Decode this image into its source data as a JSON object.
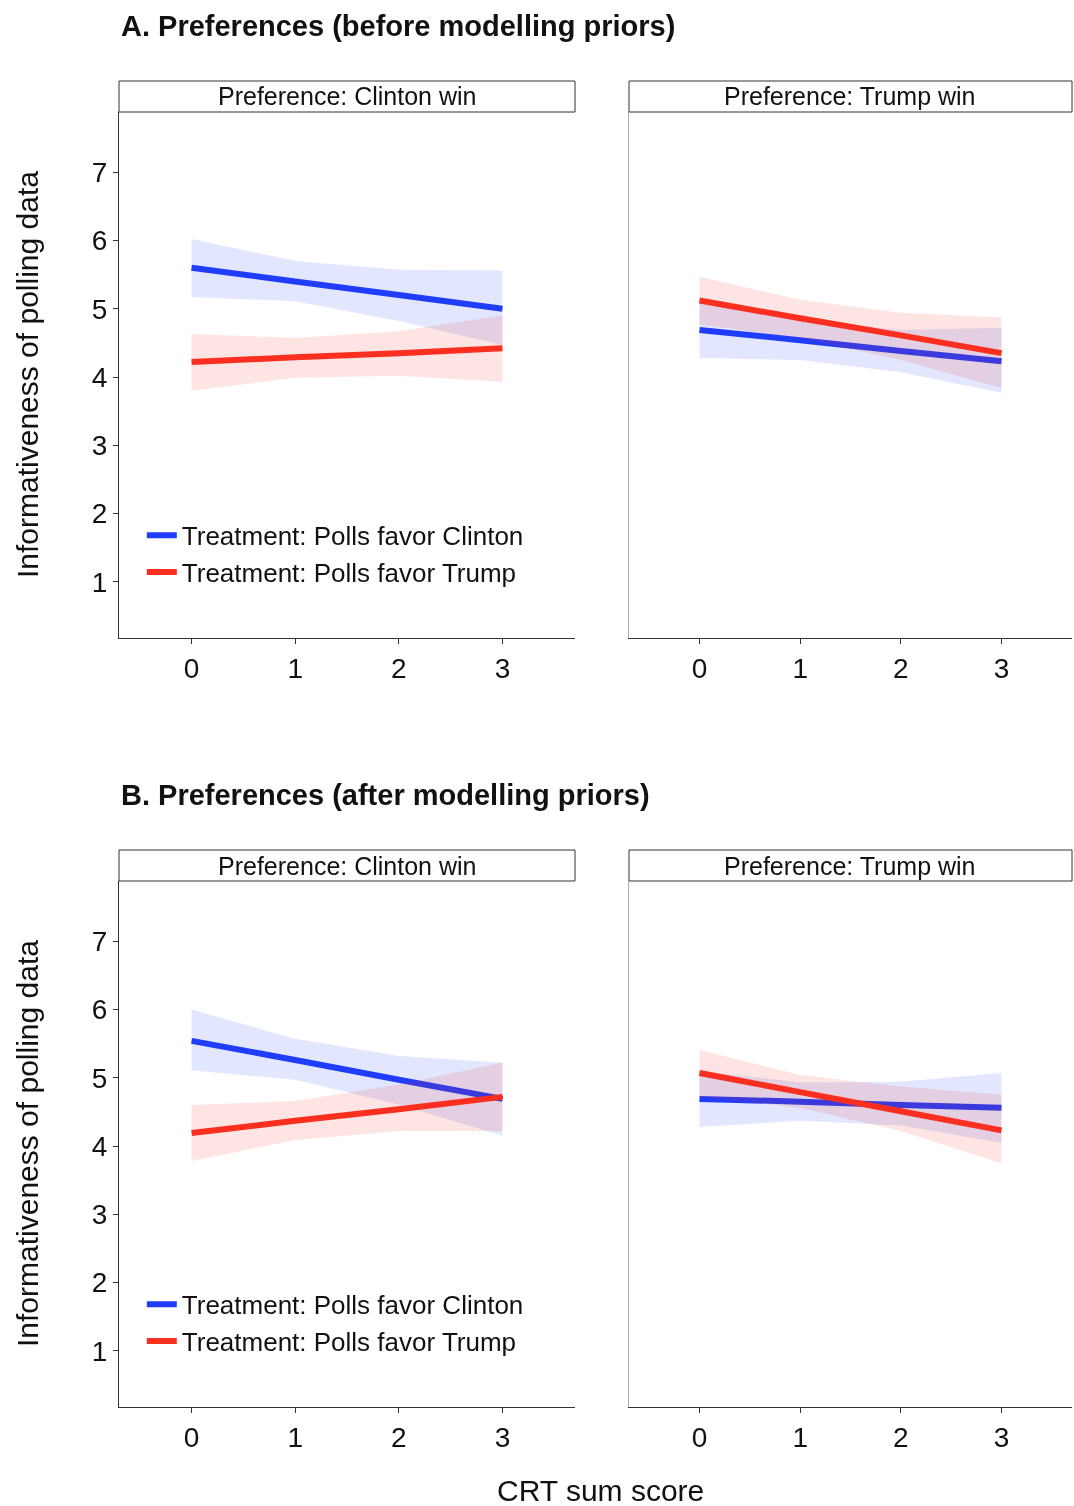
{
  "chart_data": [
    {
      "type": "line",
      "subtitle": "A. Preferences (before modelling priors)",
      "title": "Preference: Clinton win",
      "ylabel": "Informativeness of polling data",
      "x": [
        0,
        1,
        2,
        3
      ],
      "xlim": [
        -0.7,
        3.7
      ],
      "xticks": [
        0,
        1,
        2,
        3
      ],
      "ylim": [
        0.18,
        7.88
      ],
      "yticks": [
        1,
        2,
        3,
        4,
        5,
        6,
        7
      ],
      "legend": "bottom left",
      "series": [
        {
          "name": "Treatment: Polls favor Clinton",
          "color": "#1f3dfa",
          "values": [
            5.6,
            5.4,
            5.2,
            5.0
          ],
          "lower": [
            5.17,
            5.11,
            4.82,
            4.47
          ],
          "upper": [
            6.02,
            5.7,
            5.57,
            5.56
          ]
        },
        {
          "name": "Treatment: Polls favor Trump",
          "color": "#fa2f1f",
          "values": [
            4.22,
            4.29,
            4.35,
            4.42
          ],
          "lower": [
            3.8,
            3.99,
            4.02,
            3.93
          ],
          "upper": [
            4.63,
            4.57,
            4.67,
            4.9
          ]
        }
      ]
    },
    {
      "type": "line",
      "title": "Preference: Trump win",
      "x": [
        0,
        1,
        2,
        3
      ],
      "xlim": [
        -0.7,
        3.7
      ],
      "xticks": [
        0,
        1,
        2,
        3
      ],
      "ylim": [
        0.18,
        7.88
      ],
      "yticks": [
        1,
        2,
        3,
        4,
        5,
        6,
        7
      ],
      "tick_labels": "x",
      "series": [
        {
          "color": "#1f3dfa",
          "values": [
            4.69,
            4.54,
            4.38,
            4.23
          ],
          "lower": [
            4.28,
            4.25,
            4.07,
            3.77
          ],
          "upper": [
            5.09,
            4.84,
            4.69,
            4.72
          ]
        },
        {
          "color": "#fa2f1f",
          "values": [
            5.12,
            4.86,
            4.61,
            4.35
          ],
          "lower": [
            4.77,
            4.57,
            4.25,
            3.84
          ],
          "upper": [
            5.47,
            5.13,
            4.94,
            4.87
          ]
        }
      ]
    },
    {
      "type": "line",
      "subtitle": "B. Preferences (after modelling priors)",
      "title": "Preference: Clinton win",
      "ylabel": "Informativeness of polling data",
      "xlabel": "CRT sum score",
      "x": [
        0,
        1,
        2,
        3
      ],
      "xlim": [
        -0.7,
        3.7
      ],
      "xticks": [
        0,
        1,
        2,
        3
      ],
      "ylim": [
        0.18,
        7.88
      ],
      "yticks": [
        1,
        2,
        3,
        4,
        5,
        6,
        7
      ],
      "legend": "bottom left",
      "series": [
        {
          "name": "Treatment: Polls favor Clinton",
          "color": "#1f3dfa",
          "values": [
            5.54,
            5.26,
            4.97,
            4.69
          ],
          "lower": [
            5.11,
            4.97,
            4.61,
            4.15
          ],
          "upper": [
            6.0,
            5.57,
            5.32,
            5.22
          ]
        },
        {
          "name": "Treatment: Polls favor Trump",
          "color": "#fa2f1f",
          "values": [
            4.19,
            4.37,
            4.54,
            4.72
          ],
          "lower": [
            3.78,
            4.09,
            4.22,
            4.22
          ],
          "upper": [
            4.6,
            4.66,
            4.9,
            5.22
          ]
        }
      ]
    },
    {
      "type": "line",
      "title": "Preference: Trump win",
      "x": [
        0,
        1,
        2,
        3
      ],
      "xlim": [
        -0.7,
        3.7
      ],
      "xticks": [
        0,
        1,
        2,
        3
      ],
      "ylim": [
        0.18,
        7.88
      ],
      "yticks": [
        1,
        2,
        3,
        4,
        5,
        6,
        7
      ],
      "tick_labels": "x",
      "series": [
        {
          "color": "#1f3dfa",
          "values": [
            4.69,
            4.65,
            4.6,
            4.56
          ],
          "lower": [
            4.28,
            4.37,
            4.3,
            4.05
          ],
          "upper": [
            5.1,
            4.93,
            4.94,
            5.07
          ]
        },
        {
          "color": "#fa2f1f",
          "values": [
            5.07,
            4.79,
            4.51,
            4.23
          ],
          "lower": [
            4.72,
            4.56,
            4.22,
            3.75
          ],
          "upper": [
            5.41,
            5.04,
            4.87,
            4.75
          ]
        }
      ]
    }
  ]
}
